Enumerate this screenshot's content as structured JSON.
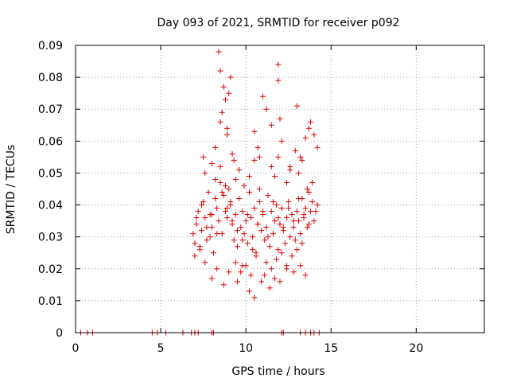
{
  "chart_data": {
    "type": "scatter",
    "title": "Day 093 of 2021, SRMTID for receiver p092",
    "xlabel": "GPS time / hours",
    "ylabel": "SRMTID / TECUs",
    "xlim": [
      0,
      24
    ],
    "ylim": [
      0,
      0.09
    ],
    "x_ticks": [
      0,
      5,
      10,
      15,
      20
    ],
    "x_tick_labels": [
      "0",
      "5",
      "10",
      "15",
      "20"
    ],
    "y_ticks": [
      0,
      0.01,
      0.02,
      0.03,
      0.04,
      0.05,
      0.06,
      0.07,
      0.08,
      0.09
    ],
    "y_tick_labels": [
      "0",
      "0.01",
      "0.02",
      "0.03",
      "0.04",
      "0.05",
      "0.06",
      "0.07",
      "0.08",
      "0.09"
    ],
    "grid": true,
    "marker": "+",
    "colors": {
      "series": "#dd0000",
      "grid": "#a0a0a0",
      "axes": "#000000"
    },
    "series": [
      {
        "name": "SRMTID",
        "x": [
          0.3,
          0.7,
          1.0,
          4.5,
          4.8,
          5.3,
          6.3,
          6.8,
          7.0,
          7.2,
          8.0,
          8.1,
          12.1,
          12.2,
          13.2,
          13.5,
          13.8,
          14.0,
          14.3,
          6.9,
          7.0,
          7.1,
          7.2,
          7.3,
          7.4,
          7.5,
          7.6,
          7.7,
          7.8,
          7.9,
          8.0,
          8.1,
          8.2,
          8.3,
          8.4,
          8.5,
          8.6,
          8.7,
          8.8,
          8.9,
          9.0,
          9.1,
          9.2,
          9.3,
          9.4,
          9.5,
          9.6,
          9.7,
          9.8,
          9.9,
          10.0,
          10.1,
          10.2,
          10.3,
          10.4,
          10.5,
          10.6,
          10.7,
          10.8,
          10.9,
          11.0,
          11.1,
          11.2,
          11.3,
          11.4,
          11.5,
          11.6,
          11.7,
          11.8,
          11.9,
          12.0,
          12.1,
          12.2,
          12.3,
          12.4,
          12.5,
          12.6,
          12.7,
          12.8,
          12.9,
          13.0,
          13.1,
          13.2,
          13.3,
          13.4,
          13.5,
          13.6,
          13.7,
          13.8,
          13.9,
          14.0,
          14.2,
          7.0,
          7.3,
          7.6,
          7.9,
          8.2,
          8.5,
          8.8,
          9.1,
          9.4,
          9.7,
          10.0,
          10.3,
          10.6,
          10.9,
          11.2,
          11.5,
          11.8,
          12.1,
          12.4,
          12.7,
          13.0,
          13.3,
          13.6,
          13.9,
          7.1,
          7.4,
          7.7,
          8.0,
          8.3,
          8.6,
          8.9,
          9.2,
          9.5,
          9.8,
          10.1,
          10.4,
          10.7,
          11.0,
          11.3,
          11.6,
          11.9,
          12.2,
          12.5,
          12.8,
          13.1,
          13.4,
          13.7,
          14.1,
          8.4,
          8.5,
          8.7,
          8.8,
          8.6,
          8.5,
          8.9,
          9.0,
          9.1,
          11.0,
          11.2,
          11.5,
          11.9,
          11.9,
          12.0,
          12.1,
          8.2,
          8.9,
          9.2,
          9.3,
          10.5,
          10.7,
          10.8,
          12.6,
          13.0,
          13.5,
          13.7,
          13.8,
          14.0,
          14.2,
          13.3,
          13.2,
          12.9,
          8.0,
          8.3,
          8.7,
          9.0,
          9.5,
          9.8,
          10.2,
          10.5,
          11.1,
          11.4,
          11.7,
          12.0,
          12.4,
          12.8,
          13.2,
          13.5,
          7.5,
          7.6,
          8.0,
          9.4,
          9.6,
          9.9,
          10.2,
          10.5,
          10.8,
          11.5,
          11.7,
          11.9,
          12.4,
          12.6,
          13.1
        ],
        "y": [
          0,
          0,
          0,
          0,
          0,
          0,
          0,
          0,
          0,
          0,
          0,
          0,
          0,
          0,
          0,
          0,
          0,
          0,
          0,
          0.031,
          0.028,
          0.034,
          0.038,
          0.026,
          0.032,
          0.041,
          0.036,
          0.029,
          0.044,
          0.037,
          0.033,
          0.025,
          0.042,
          0.039,
          0.035,
          0.047,
          0.031,
          0.043,
          0.038,
          0.036,
          0.045,
          0.04,
          0.034,
          0.029,
          0.037,
          0.027,
          0.042,
          0.033,
          0.038,
          0.031,
          0.035,
          0.028,
          0.044,
          0.036,
          0.03,
          0.039,
          0.025,
          0.034,
          0.041,
          0.032,
          0.037,
          0.029,
          0.033,
          0.043,
          0.027,
          0.038,
          0.031,
          0.035,
          0.04,
          0.026,
          0.034,
          0.039,
          0.032,
          0.028,
          0.036,
          0.041,
          0.03,
          0.037,
          0.033,
          0.029,
          0.038,
          0.035,
          0.031,
          0.042,
          0.036,
          0.039,
          0.033,
          0.044,
          0.038,
          0.041,
          0.035,
          0.04,
          0.024,
          0.027,
          0.022,
          0.03,
          0.048,
          0.052,
          0.046,
          0.041,
          0.022,
          0.019,
          0.021,
          0.018,
          0.024,
          0.016,
          0.022,
          0.02,
          0.023,
          0.025,
          0.021,
          0.024,
          0.026,
          0.028,
          0.045,
          0.047,
          0.036,
          0.04,
          0.033,
          0.037,
          0.031,
          0.044,
          0.039,
          0.035,
          0.032,
          0.029,
          0.037,
          0.026,
          0.034,
          0.038,
          0.03,
          0.041,
          0.036,
          0.033,
          0.039,
          0.035,
          0.042,
          0.037,
          0.034,
          0.038,
          0.088,
          0.082,
          0.077,
          0.073,
          0.069,
          0.066,
          0.064,
          0.075,
          0.08,
          0.074,
          0.07,
          0.065,
          0.084,
          0.079,
          0.067,
          0.06,
          0.058,
          0.062,
          0.056,
          0.054,
          0.063,
          0.058,
          0.055,
          0.052,
          0.071,
          0.061,
          0.064,
          0.066,
          0.062,
          0.058,
          0.054,
          0.055,
          0.057,
          0.017,
          0.02,
          0.015,
          0.019,
          0.016,
          0.021,
          0.013,
          0.011,
          0.018,
          0.014,
          0.017,
          0.016,
          0.02,
          0.019,
          0.021,
          0.018,
          0.055,
          0.05,
          0.053,
          0.048,
          0.051,
          0.046,
          0.049,
          0.054,
          0.045,
          0.052,
          0.049,
          0.055,
          0.047,
          0.051,
          0.05
        ]
      }
    ]
  }
}
